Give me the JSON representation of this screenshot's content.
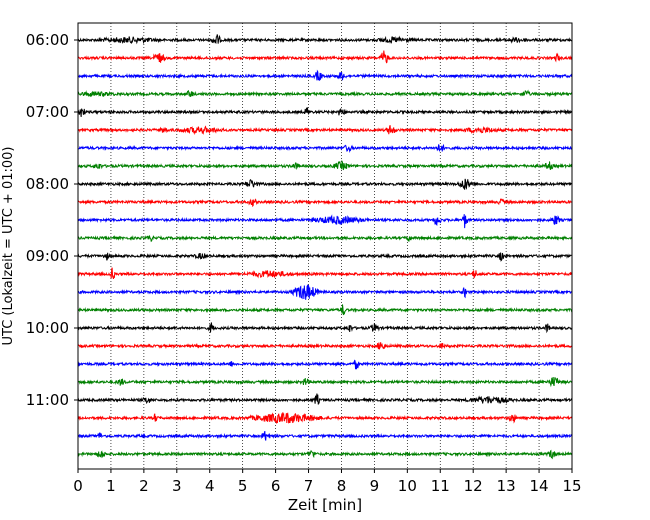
{
  "chart_data": {
    "type": "line",
    "subtype": "helicorder",
    "xlabel": "Zeit  [min]",
    "ylabel": "UTC (Lokalzeit = UTC + 01:00)",
    "xlim": [
      0,
      15
    ],
    "x_ticks": [
      0,
      1,
      2,
      3,
      4,
      5,
      6,
      7,
      8,
      9,
      10,
      11,
      12,
      13,
      14,
      15
    ],
    "grid": "vertical dotted at each minute",
    "trace_colors": [
      "#000000",
      "#ff0000",
      "#0000ff",
      "#008000"
    ],
    "trace_interval_min": 15,
    "first_trace_time": "06:00",
    "trace_count": 24,
    "y_tick_labels": [
      "06:00",
      "07:00",
      "08:00",
      "09:00",
      "10:00",
      "11:00"
    ],
    "y_tick_trace_index": [
      0,
      4,
      8,
      12,
      16,
      20
    ]
  }
}
